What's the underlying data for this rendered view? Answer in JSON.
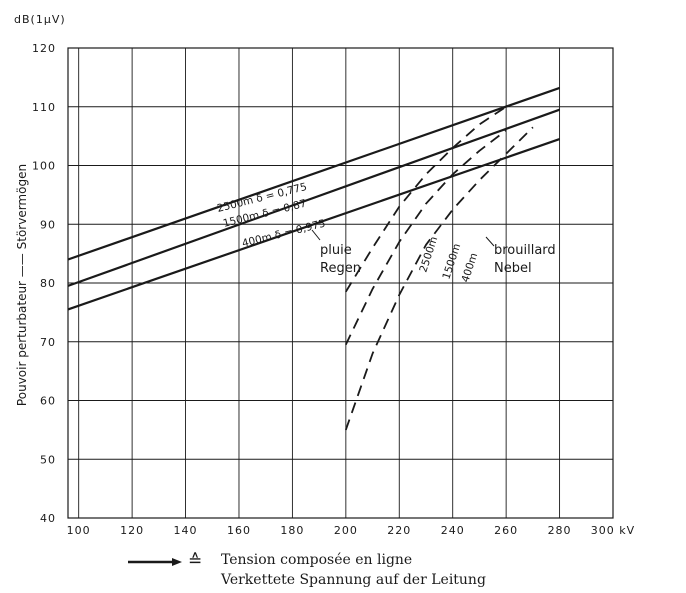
{
  "chart_data": {
    "type": "line",
    "ylabel_top": "dB(1μV)",
    "ylabel": "Pouvoir perturbateur —— Störvermögen",
    "xunit": "kV",
    "xlim": [
      96,
      300
    ],
    "ylim": [
      40,
      120
    ],
    "xticks": [
      "100",
      "120",
      "140",
      "160",
      "180",
      "200",
      "220",
      "240",
      "260",
      "280",
      "300 kV"
    ],
    "yticks": [
      "40",
      "50",
      "60",
      "70",
      "80",
      "90",
      "100",
      "110",
      "120"
    ],
    "grid": true,
    "series": [
      {
        "name": "2500m δ = 0,775",
        "style": "solid",
        "x": [
          96,
          280
        ],
        "y": [
          84,
          113.2
        ]
      },
      {
        "name": "1500m δ = 0,87",
        "style": "solid",
        "x": [
          96,
          280
        ],
        "y": [
          79.5,
          109.5
        ]
      },
      {
        "name": "400m δ = 0,975",
        "style": "solid",
        "x": [
          96,
          280
        ],
        "y": [
          75.5,
          104.5
        ]
      },
      {
        "name": "2500m",
        "style": "dashed",
        "x": [
          200,
          210,
          220,
          230,
          240,
          250,
          260
        ],
        "y": [
          78.5,
          86,
          93,
          98.5,
          103,
          107,
          110
        ]
      },
      {
        "name": "1500m",
        "style": "dashed",
        "x": [
          200,
          210,
          220,
          230,
          240,
          250,
          260
        ],
        "y": [
          69.5,
          79,
          87,
          93.5,
          98.5,
          102.5,
          106
        ]
      },
      {
        "name": "400m",
        "style": "dashed",
        "x": [
          200,
          210,
          220,
          230,
          240,
          250,
          260,
          270
        ],
        "y": [
          55,
          68,
          78,
          86.5,
          92.5,
          97.5,
          102,
          106.5
        ]
      }
    ],
    "annotations": {
      "rain_fr": "pluie",
      "rain_de": "Regen",
      "fog_fr": "brouillard",
      "fog_de": "Nebel"
    },
    "legend": {
      "symbol": "≙",
      "line1": "Tension composée en ligne",
      "line2": "Verkettete Spannung auf der Leitung"
    }
  }
}
